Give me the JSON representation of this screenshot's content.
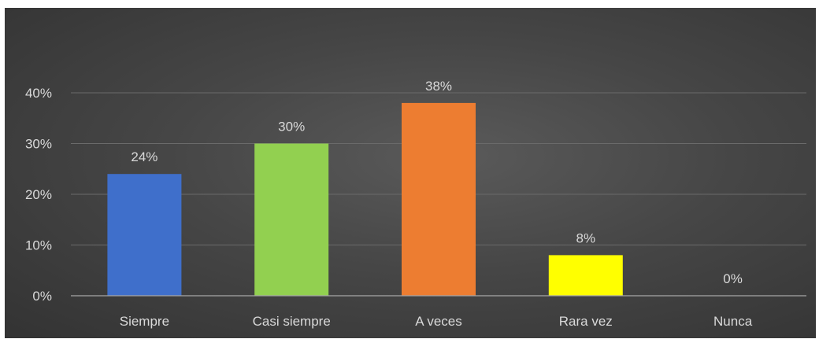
{
  "chart_data": {
    "type": "bar",
    "categories": [
      "Siempre",
      "Casi siempre",
      "A veces",
      "Rara vez",
      "Nunca"
    ],
    "values": [
      24,
      30,
      38,
      8,
      0
    ],
    "data_labels": [
      "24%",
      "30%",
      "38%",
      "8%",
      "0%"
    ],
    "colors": [
      "#3f6fcb",
      "#92d050",
      "#ed7d31",
      "#ffff00",
      "#a5a5a5"
    ],
    "y_ticks": [
      0,
      10,
      20,
      30,
      40
    ],
    "y_tick_labels": [
      "0%",
      "10%",
      "20%",
      "30%",
      "40%"
    ],
    "ylim": [
      0,
      40
    ],
    "grid": true,
    "legend": "none",
    "title": "",
    "xlabel": "",
    "ylabel": ""
  }
}
